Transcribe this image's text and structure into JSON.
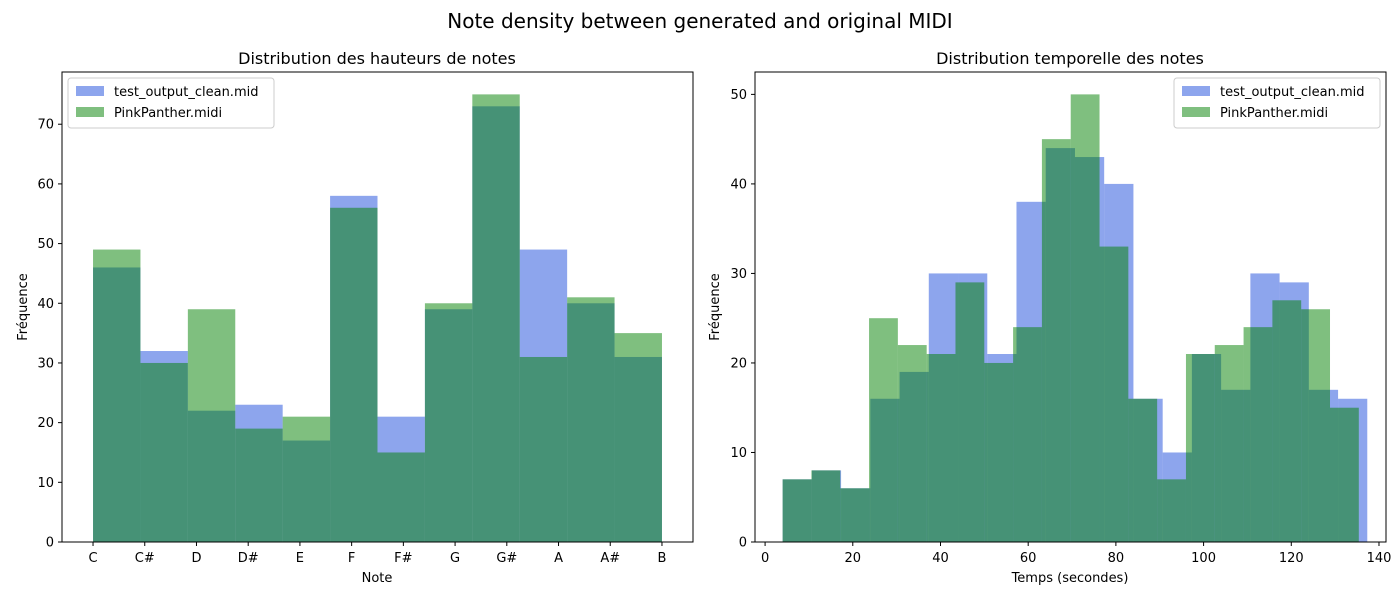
{
  "suptitle": "Note density between generated and original MIDI",
  "colors": {
    "generated": "#4169e1",
    "original": "#008000",
    "generated_alpha": 0.6,
    "original_alpha": 0.5
  },
  "chart_data": [
    {
      "type": "bar",
      "title": "Distribution des hauteurs de notes",
      "xlabel": "Note",
      "ylabel": "Fréquence",
      "categories": [
        "C",
        "C#",
        "D",
        "D#",
        "E",
        "F",
        "F#",
        "G",
        "G#",
        "A",
        "A#",
        "B"
      ],
      "ylim": [
        0,
        78.75
      ],
      "yticks": [
        0,
        10,
        20,
        30,
        40,
        50,
        60,
        70
      ],
      "grid": false,
      "legend_position": "upper-left",
      "series": [
        {
          "name": "test_output_clean.mid",
          "color_key": "generated",
          "values": [
            46,
            32,
            22,
            23,
            17,
            58,
            21,
            39,
            73,
            49,
            40,
            31
          ]
        },
        {
          "name": "PinkPanther.midi",
          "color_key": "original",
          "values": [
            49,
            30,
            39,
            19,
            21,
            56,
            15,
            40,
            75,
            31,
            41,
            35
          ]
        }
      ]
    },
    {
      "type": "bar",
      "title": "Distribution temporelle des notes",
      "xlabel": "Temps (secondes)",
      "ylabel": "Fréquence",
      "xlim": [
        -2.3,
        141.6
      ],
      "ylim": [
        0,
        52.5
      ],
      "xticks": [
        0,
        20,
        40,
        60,
        80,
        100,
        120,
        140
      ],
      "yticks": [
        0,
        10,
        20,
        30,
        40,
        50
      ],
      "grid": false,
      "legend_position": "upper-right",
      "series": [
        {
          "name": "test_output_clean.mid",
          "color_key": "generated",
          "bin_edges": [
            4,
            10.67,
            17.33,
            24,
            30.67,
            37.33,
            44,
            50.67,
            57.33,
            64,
            70.67,
            77.33,
            84,
            90.67,
            97.33,
            104,
            110.67,
            117.33,
            124,
            130.67,
            137.33
          ],
          "values": [
            7,
            8,
            6,
            16,
            19,
            30,
            30,
            21,
            38,
            44,
            43,
            40,
            16,
            10,
            21,
            17,
            30,
            29,
            17,
            16
          ]
        },
        {
          "name": "PinkPanther.midi",
          "color_key": "original",
          "bin_edges": [
            4,
            10.57,
            17.14,
            23.71,
            30.28,
            36.85,
            43.42,
            49.99,
            56.56,
            63.13,
            69.7,
            76.27,
            82.84,
            89.41,
            95.98,
            102.55,
            109.12,
            115.69,
            122.26,
            128.83,
            135.4
          ],
          "values": [
            7,
            8,
            6,
            25,
            22,
            21,
            29,
            20,
            24,
            45,
            50,
            33,
            16,
            7,
            21,
            22,
            24,
            27,
            26,
            15
          ]
        }
      ]
    }
  ]
}
